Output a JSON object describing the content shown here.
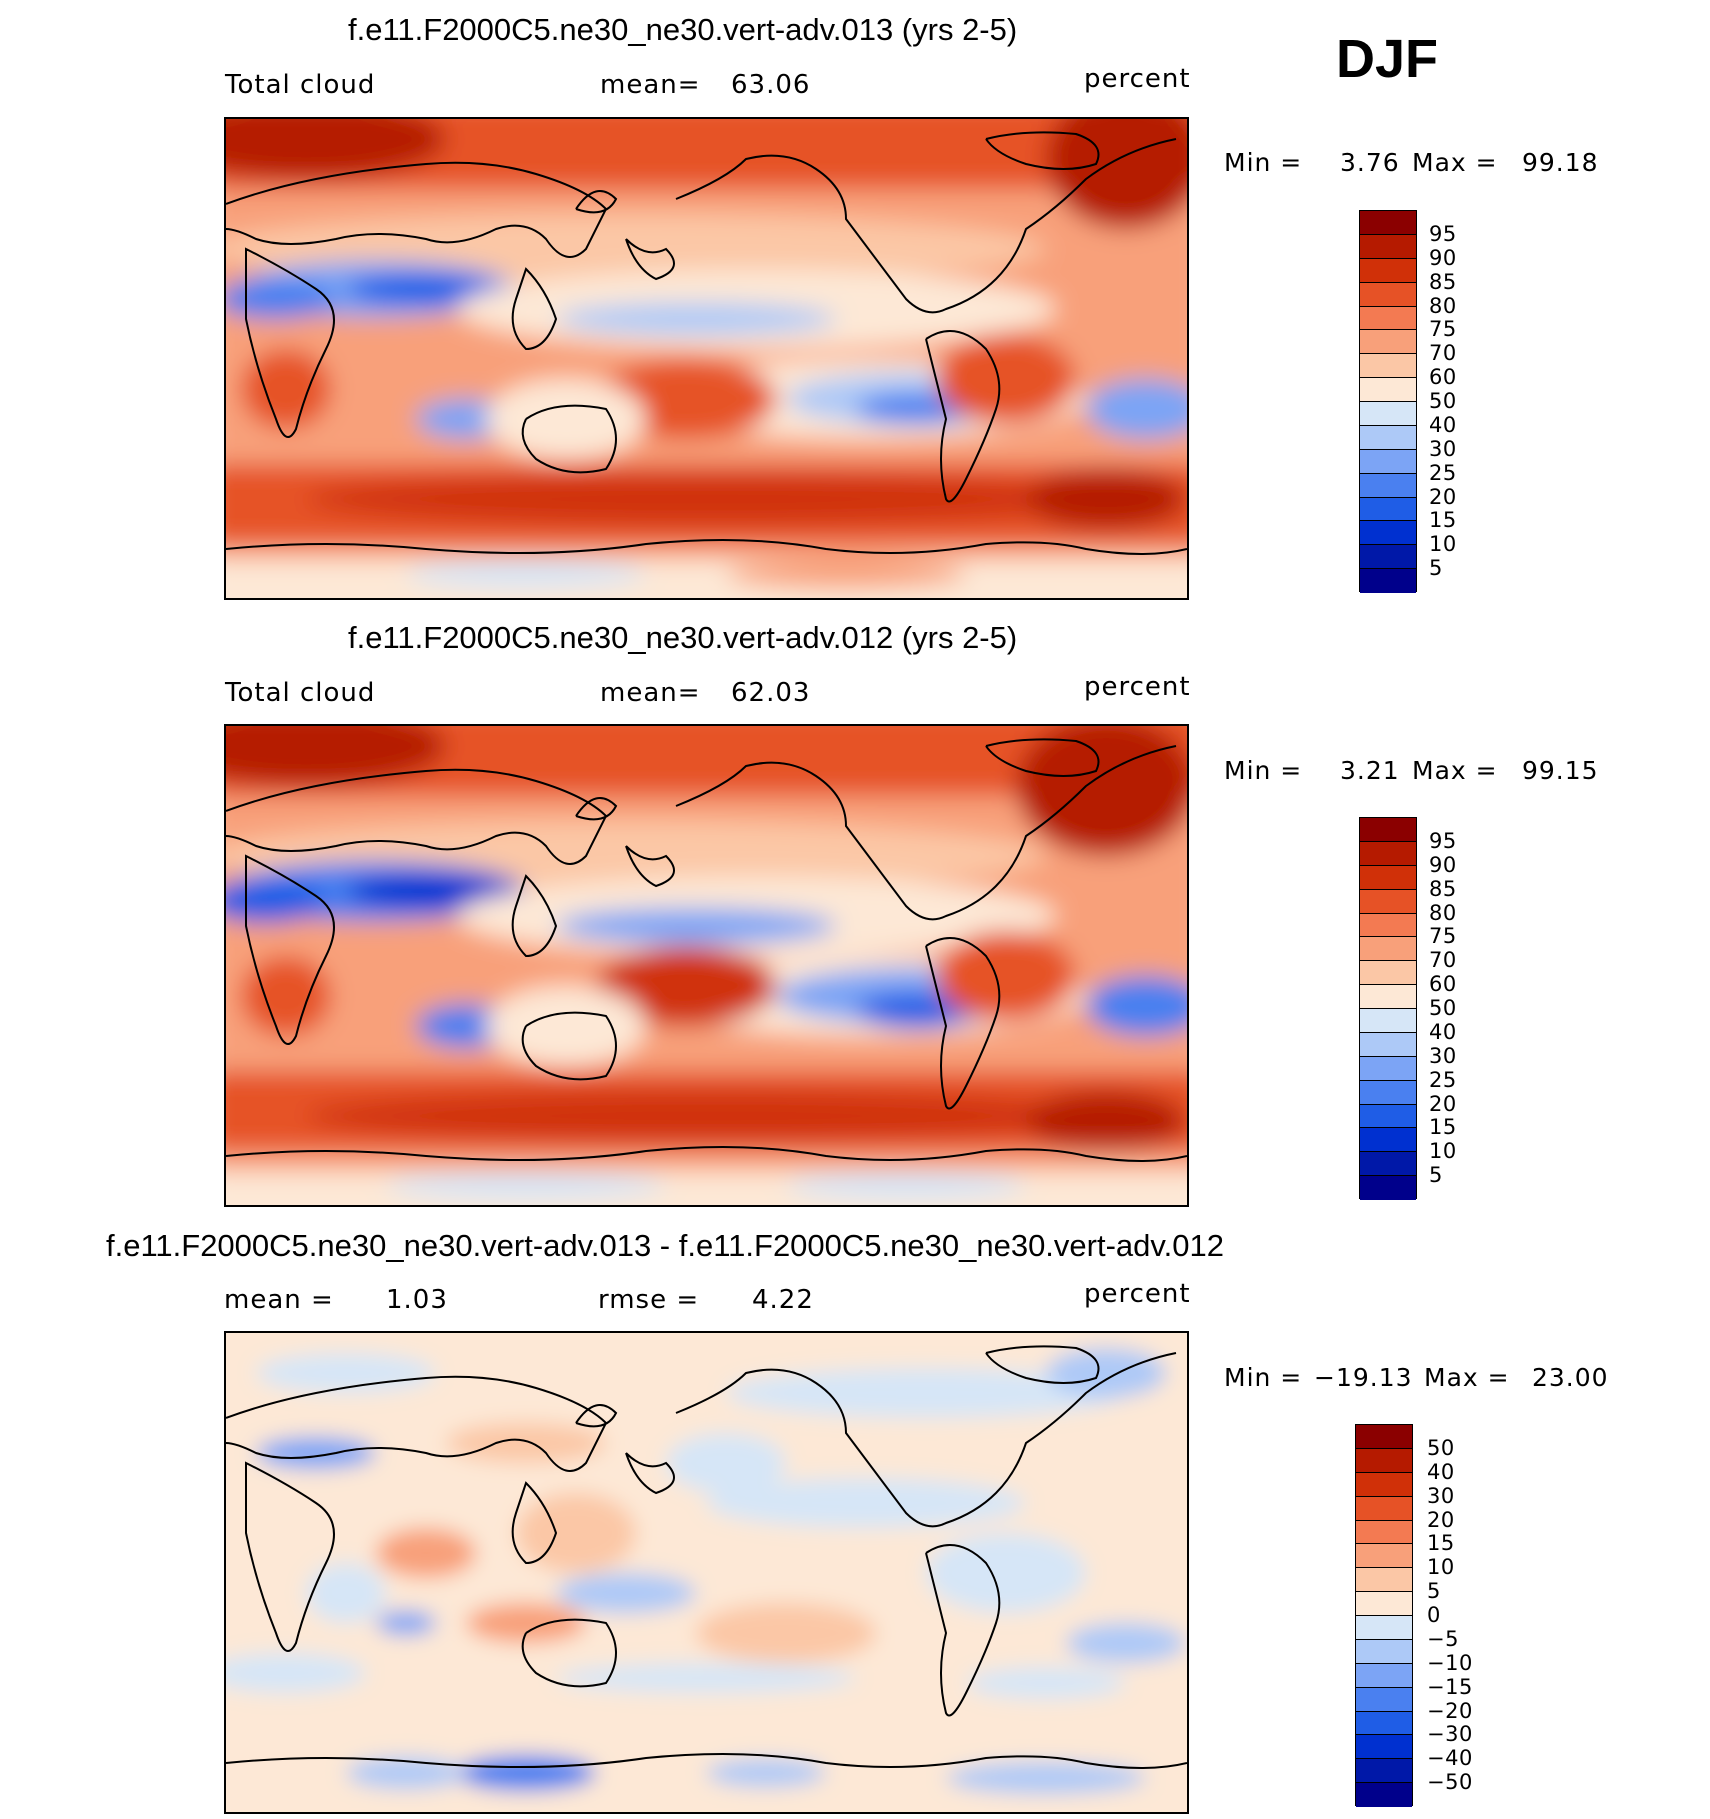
{
  "season": "DJF",
  "colors": {
    "abs_scale": [
      "#00008b",
      "#0018a8",
      "#0030d0",
      "#1f5de6",
      "#4a80f0",
      "#7ca4f5",
      "#adc9f7",
      "#d6e6f7",
      "#fde8d6",
      "#fbc7a6",
      "#f8a07a",
      "#f37a52",
      "#e65226",
      "#d03008",
      "#b51a00",
      "#8b0000"
    ],
    "land_line": "#000000"
  },
  "panels": [
    {
      "title": "f.e11.F2000C5.ne30_ne30.vert-adv.013 (yrs 2-5)",
      "left_label": "Total cloud",
      "mid_label": "mean=",
      "mid_value": "63.06",
      "units": "percent",
      "min_label": "Min =",
      "min_value": "3.76",
      "max_label": "Max =",
      "max_value": "99.18",
      "colorbar": {
        "labels": [
          "95",
          "90",
          "85",
          "80",
          "75",
          "70",
          "60",
          "50",
          "40",
          "30",
          "25",
          "20",
          "15",
          "10",
          "5"
        ],
        "colors": [
          "#8b0000",
          "#b51a00",
          "#d03008",
          "#e65226",
          "#f37a52",
          "#f8a07a",
          "#fbc7a6",
          "#fde8d6",
          "#d6e6f7",
          "#adc9f7",
          "#7ca4f5",
          "#4a80f0",
          "#1f5de6",
          "#0030d0",
          "#0018a8",
          "#00008b"
        ]
      }
    },
    {
      "title": "f.e11.F2000C5.ne30_ne30.vert-adv.012 (yrs 2-5)",
      "left_label": "Total cloud",
      "mid_label": "mean=",
      "mid_value": "62.03",
      "units": "percent",
      "min_label": "Min =",
      "min_value": "3.21",
      "max_label": "Max =",
      "max_value": "99.15",
      "colorbar": {
        "labels": [
          "95",
          "90",
          "85",
          "80",
          "75",
          "70",
          "60",
          "50",
          "40",
          "30",
          "25",
          "20",
          "15",
          "10",
          "5"
        ],
        "colors": [
          "#8b0000",
          "#b51a00",
          "#d03008",
          "#e65226",
          "#f37a52",
          "#f8a07a",
          "#fbc7a6",
          "#fde8d6",
          "#d6e6f7",
          "#adc9f7",
          "#7ca4f5",
          "#4a80f0",
          "#1f5de6",
          "#0030d0",
          "#0018a8",
          "#00008b"
        ]
      }
    },
    {
      "title": "f.e11.F2000C5.ne30_ne30.vert-adv.013 - f.e11.F2000C5.ne30_ne30.vert-adv.012",
      "left_label": "mean =",
      "left_value": "1.03",
      "mid_label": "rmse =",
      "mid_value": "4.22",
      "units": "percent",
      "min_label": "Min =",
      "min_value": "−19.13",
      "max_label": "Max =",
      "max_value": "23.00",
      "colorbar": {
        "labels": [
          "50",
          "40",
          "30",
          "20",
          "15",
          "10",
          "5",
          "0",
          "−5",
          "−10",
          "−15",
          "−20",
          "−30",
          "−40",
          "−50"
        ],
        "colors": [
          "#8b0000",
          "#b51a00",
          "#d03008",
          "#e65226",
          "#f37a52",
          "#f8a07a",
          "#fbc7a6",
          "#fde8d6",
          "#d6e6f7",
          "#adc9f7",
          "#7ca4f5",
          "#4a80f0",
          "#1f5de6",
          "#0030d0",
          "#0018a8",
          "#00008b"
        ]
      }
    }
  ]
}
